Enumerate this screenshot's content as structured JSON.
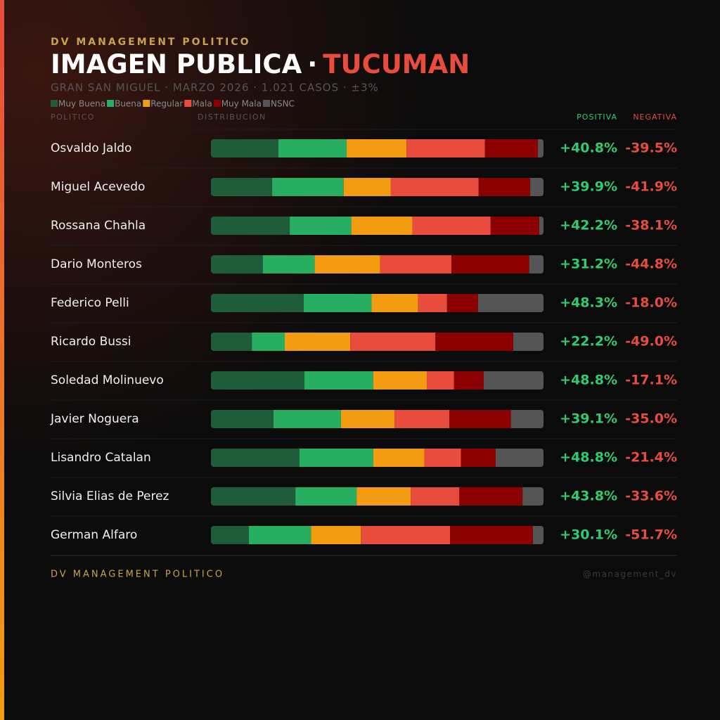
{
  "header": {
    "brand": "DV MANAGEMENT POLITICO",
    "title": "IMAGEN PUBLICA",
    "title_separator": "·",
    "title_highlight": "TUCUMAN",
    "subtitle": "GRAN SAN MIGUEL · MARZO 2026 · 1.021 CASOS · ±3%"
  },
  "chart_data": {
    "type": "bar",
    "orientation": "horizontal",
    "stacked": true,
    "column_labels": {
      "politico": "POLITICO",
      "distribucion": "DISTRIBUCION",
      "positiva": "POSITIVA",
      "negativa": "NEGATIVA"
    },
    "categories": [
      "Osvaldo Jaldo",
      "Miguel Acevedo",
      "Rossana Chahla",
      "Dario Monteros",
      "Federico Pelli",
      "Ricardo Bussi",
      "Soledad Molinuevo",
      "Javier Noguera",
      "Lisandro Catalan",
      "Silvia Elias de Perez",
      "German Alfaro"
    ],
    "series": [
      {
        "name": "Muy Buena",
        "color": "#1e5c3a",
        "values": [
          20.3,
          18.4,
          23.7,
          15.6,
          27.9,
          12.3,
          28.1,
          18.8,
          26.6,
          25.4,
          11.4
        ]
      },
      {
        "name": "Buena",
        "color": "#27ae60",
        "values": [
          20.5,
          21.5,
          18.5,
          15.6,
          20.4,
          9.9,
          20.7,
          20.3,
          22.2,
          18.4,
          18.7
        ]
      },
      {
        "name": "Regular",
        "color": "#f39c12",
        "values": [
          18.0,
          14.2,
          18.4,
          19.7,
          14.0,
          19.7,
          16.1,
          16.1,
          15.4,
          16.3,
          15.0
        ]
      },
      {
        "name": "Mala",
        "color": "#e74c3c",
        "values": [
          23.6,
          26.4,
          23.5,
          21.4,
          8.7,
          25.6,
          8.2,
          16.5,
          11.0,
          14.6,
          26.8
        ]
      },
      {
        "name": "Muy Mala",
        "color": "#8b0000",
        "values": [
          15.9,
          15.5,
          14.6,
          23.4,
          9.3,
          23.4,
          8.9,
          18.5,
          10.4,
          19.0,
          24.9
        ]
      },
      {
        "name": "NSNC",
        "color": "#555555",
        "values": [
          1.7,
          4.0,
          1.3,
          4.3,
          19.7,
          9.1,
          18.0,
          9.8,
          14.4,
          6.3,
          3.2
        ]
      }
    ],
    "positive": {
      "color": "#2ecc71",
      "values": [
        40.8,
        39.9,
        42.2,
        31.2,
        48.3,
        22.2,
        48.8,
        39.1,
        48.8,
        43.8,
        30.1
      ],
      "value_labels": [
        "+40.8%",
        "+39.9%",
        "+42.2%",
        "+31.2%",
        "+48.3%",
        "+22.2%",
        "+48.8%",
        "+39.1%",
        "+48.8%",
        "+43.8%",
        "+30.1%"
      ]
    },
    "negative": {
      "color": "#e74c3c",
      "values": [
        -39.5,
        -41.9,
        -38.1,
        -44.8,
        -18.0,
        -49.0,
        -17.1,
        -35.0,
        -21.4,
        -33.6,
        -51.7
      ],
      "value_labels": [
        "-39.5%",
        "-41.9%",
        "-38.1%",
        "-44.8%",
        "-18.0%",
        "-49.0%",
        "-17.1%",
        "-35.0%",
        "-21.4%",
        "-33.6%",
        "-51.7%"
      ]
    },
    "xlim": [
      0,
      100
    ]
  },
  "footer": {
    "brand": "DV MANAGEMENT POLITICO",
    "handle": "@management_dv"
  }
}
